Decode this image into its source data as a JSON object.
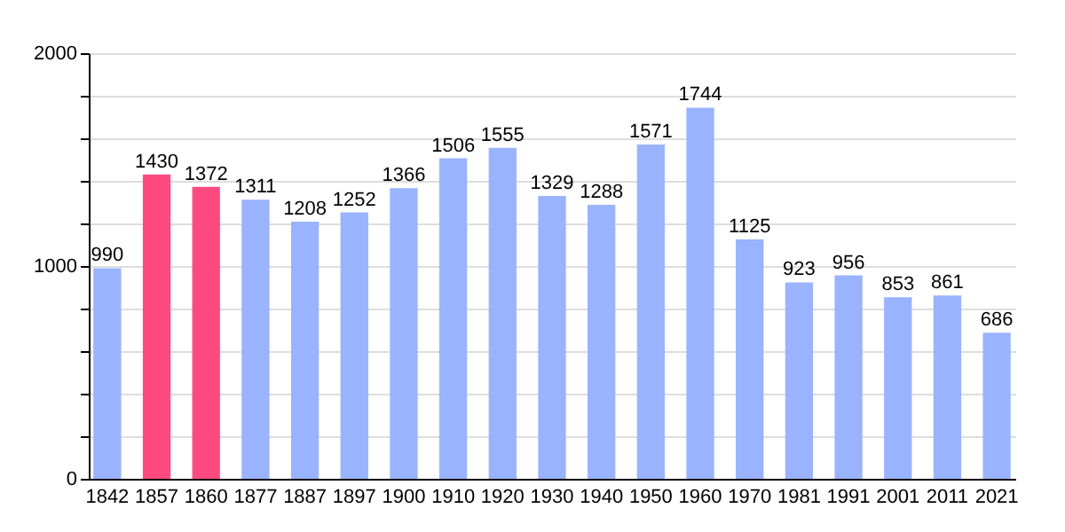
{
  "chart_data": {
    "type": "bar",
    "categories": [
      "1842",
      "1857",
      "1860",
      "1877",
      "1887",
      "1897",
      "1900",
      "1910",
      "1920",
      "1930",
      "1940",
      "1950",
      "1960",
      "1970",
      "1981",
      "1991",
      "2001",
      "2011",
      "2021"
    ],
    "values": [
      990,
      1430,
      1372,
      1311,
      1208,
      1252,
      1366,
      1506,
      1555,
      1329,
      1288,
      1571,
      1744,
      1125,
      923,
      956,
      853,
      861,
      686
    ],
    "colors": [
      "#99b3ff",
      "#ff4a80",
      "#ff4a80",
      "#99b3ff",
      "#99b3ff",
      "#99b3ff",
      "#99b3ff",
      "#99b3ff",
      "#99b3ff",
      "#99b3ff",
      "#99b3ff",
      "#99b3ff",
      "#99b3ff",
      "#99b3ff",
      "#99b3ff",
      "#99b3ff",
      "#99b3ff",
      "#99b3ff",
      "#99b3ff"
    ],
    "ylim": [
      0,
      2000
    ],
    "yticks": [
      0,
      {
        "value": 200,
        "label": null
      },
      {
        "value": 400,
        "label": null
      },
      {
        "value": 600,
        "label": null
      },
      {
        "value": 800,
        "label": null
      },
      1000,
      {
        "value": 1200,
        "label": null
      },
      {
        "value": 1400,
        "label": null
      },
      {
        "value": 1600,
        "label": null
      },
      {
        "value": 1800,
        "label": null
      },
      2000
    ],
    "grid": true,
    "data_labels": true
  }
}
